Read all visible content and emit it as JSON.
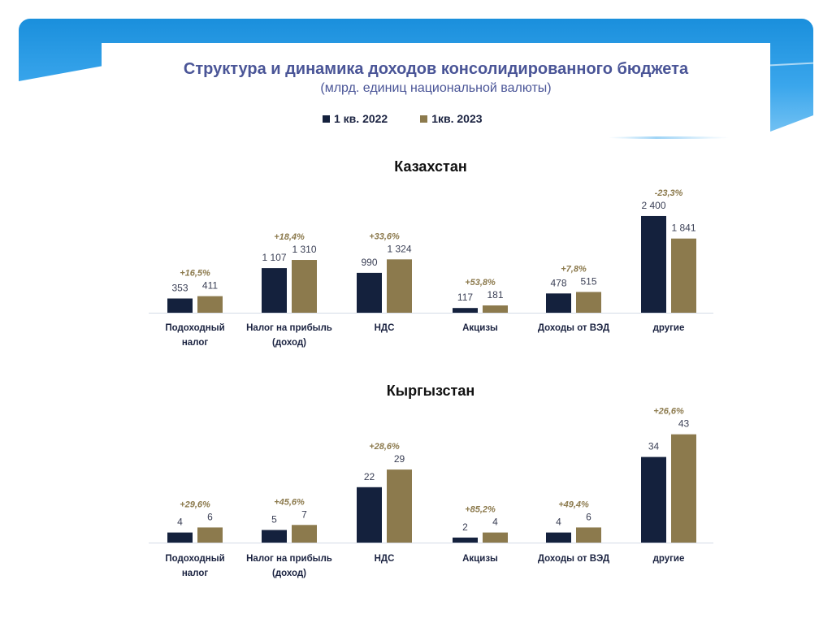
{
  "header": {
    "title": "Структура и динамика доходов консолидированного бюджета",
    "subtitle": "(млрд. единиц национальной валюты)"
  },
  "legend": [
    {
      "label": "1 кв. 2022",
      "color": "#14213d"
    },
    {
      "label": "1кв. 2023",
      "color": "#8c7a4d"
    }
  ],
  "colors": {
    "q2022": "#14213d",
    "q2023": "#8c7a4d",
    "change": "#8c7a4d",
    "value": "#3a3f55",
    "category": "#1b2341"
  },
  "chart_data": [
    {
      "type": "bar",
      "title": "Казахстан",
      "categories": [
        "Подоходный налог",
        "Налог на прибыль (доход)",
        "НДС",
        "Акцизы",
        "Доходы от ВЭД",
        "другие"
      ],
      "category_lines": [
        [
          "Подоходный",
          "налог"
        ],
        [
          "Налог на прибыль",
          "(доход)"
        ],
        [
          "НДС"
        ],
        [
          "Акцизы"
        ],
        [
          "Доходы от ВЭД"
        ],
        [
          "другие"
        ]
      ],
      "series": [
        {
          "name": "1 кв. 2022",
          "values": [
            353,
            1107,
            990,
            117,
            478,
            2400
          ],
          "labels": [
            "353",
            "1 107",
            "990",
            "117",
            "478",
            "2 400"
          ]
        },
        {
          "name": "1кв. 2023",
          "values": [
            411,
            1310,
            1324,
            181,
            515,
            1841
          ],
          "labels": [
            "411",
            "1 310",
            "1 324",
            "181",
            "515",
            "1 841"
          ]
        }
      ],
      "changes": [
        "+16,5%",
        "+18,4%",
        "+33,6%",
        "+53,8%",
        "+7,8%",
        "-23,3%"
      ],
      "ylim": [
        0,
        2500
      ],
      "grid": false,
      "legend": "top-center"
    },
    {
      "type": "bar",
      "title": "Кыргызстан",
      "categories": [
        "Подоходный налог",
        "Налог на прибыль (доход)",
        "НДС",
        "Акцизы",
        "Доходы от ВЭД",
        "другие"
      ],
      "category_lines": [
        [
          "Подоходный",
          "налог"
        ],
        [
          "Налог на прибыль",
          "(доход)"
        ],
        [
          "НДС"
        ],
        [
          "Акцизы"
        ],
        [
          "Доходы от ВЭД"
        ],
        [
          "другие"
        ]
      ],
      "series": [
        {
          "name": "1 кв. 2022",
          "values": [
            4,
            5,
            22,
            2,
            4,
            34
          ],
          "labels": [
            "4",
            "5",
            "22",
            "2",
            "4",
            "34"
          ]
        },
        {
          "name": "1кв. 2023",
          "values": [
            6,
            7,
            29,
            4,
            6,
            43
          ],
          "labels": [
            "6",
            "7",
            "29",
            "4",
            "6",
            "43"
          ]
        }
      ],
      "changes": [
        "+29,6%",
        "+45,6%",
        "+28,6%",
        "+85,2%",
        "+49,4%",
        "+26,6%"
      ],
      "ylim": [
        0,
        45
      ],
      "grid": false,
      "legend": "top-center"
    }
  ]
}
